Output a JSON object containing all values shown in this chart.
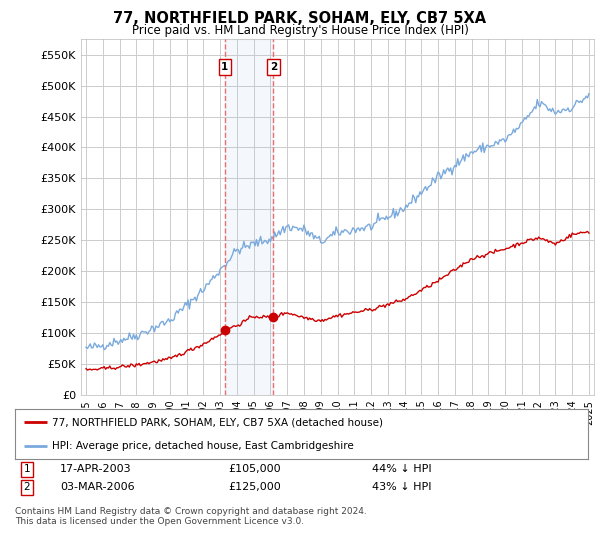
{
  "title": "77, NORTHFIELD PARK, SOHAM, ELY, CB7 5XA",
  "subtitle": "Price paid vs. HM Land Registry's House Price Index (HPI)",
  "ylim": [
    0,
    575000
  ],
  "xlim_start": 1994.7,
  "xlim_end": 2025.3,
  "red_line_color": "#cc0000",
  "blue_line_color": "#7aaadd",
  "vline1_x": 2003.28,
  "vline2_x": 2006.17,
  "vline_color": "#e87070",
  "sale1_date": "17-APR-2003",
  "sale1_price": "£105,000",
  "sale1_hpi": "44% ↓ HPI",
  "sale2_date": "03-MAR-2006",
  "sale2_price": "£125,000",
  "sale2_hpi": "43% ↓ HPI",
  "legend_line1": "77, NORTHFIELD PARK, SOHAM, ELY, CB7 5XA (detached house)",
  "legend_line2": "HPI: Average price, detached house, East Cambridgeshire",
  "footer": "Contains HM Land Registry data © Crown copyright and database right 2024.\nThis data is licensed under the Open Government Licence v3.0.",
  "background_color": "#ffffff",
  "grid_color": "#cccccc"
}
